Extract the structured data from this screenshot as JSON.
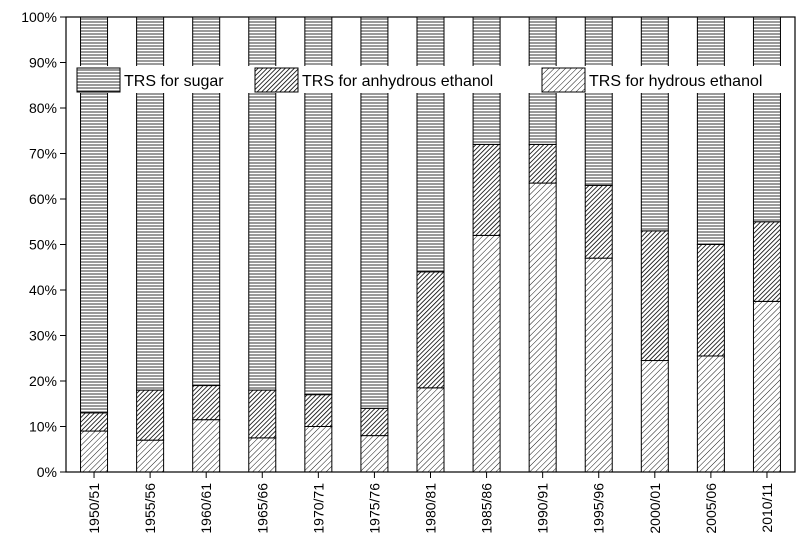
{
  "chart_data": {
    "type": "bar",
    "stacked": true,
    "percent": true,
    "categories": [
      "1950/51",
      "1955/56",
      "1960/61",
      "1965/66",
      "1970/71",
      "1975/76",
      "1980/81",
      "1985/86",
      "1990/91",
      "1995/96",
      "2000/01",
      "2005/06",
      "2010/11"
    ],
    "series": [
      {
        "name": "TRS for hydrous ethanol",
        "pattern": "diagonal-light",
        "values": [
          9,
          7,
          11.5,
          7.5,
          10,
          8,
          18.5,
          52,
          63.5,
          47,
          24.5,
          25.5,
          37.5
        ]
      },
      {
        "name": "TRS for anhydrous ethanol",
        "pattern": "diagonal-dense",
        "values": [
          4,
          11,
          7.5,
          10.5,
          7,
          6,
          25.5,
          20,
          8.5,
          16,
          28.5,
          24.5,
          17.5
        ]
      },
      {
        "name": "TRS for sugar",
        "pattern": "horizontal-lines",
        "values": [
          87,
          82,
          81,
          82,
          83,
          86,
          56,
          28,
          28,
          37,
          47,
          50,
          45
        ]
      }
    ],
    "ylim": [
      0,
      100
    ],
    "yticks": [
      "0%",
      "10%",
      "20%",
      "30%",
      "40%",
      "50%",
      "60%",
      "70%",
      "80%",
      "90%",
      "100%"
    ],
    "legend": {
      "position": "top",
      "entries": [
        "TRS for sugar",
        "TRS for anhydrous ethanol",
        "TRS for hydrous ethanol"
      ]
    },
    "grid": false
  }
}
